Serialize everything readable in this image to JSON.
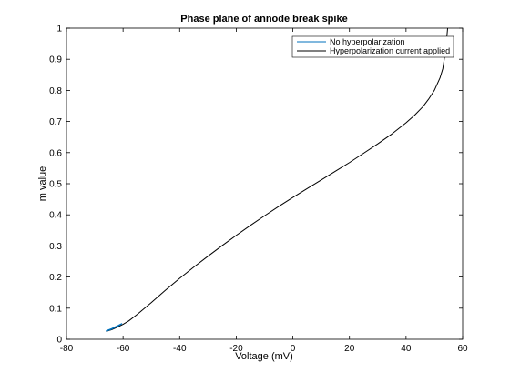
{
  "chart_data": {
    "type": "line",
    "title": "Phase plane of annode break spike",
    "xlabel": "Voltage (mV)",
    "ylabel": "m value",
    "xlim": [
      -80,
      60
    ],
    "ylim": [
      0,
      1
    ],
    "x_ticks": [
      -80,
      -60,
      -40,
      -20,
      0,
      20,
      40,
      60
    ],
    "y_ticks": [
      0,
      0.1,
      0.2,
      0.3,
      0.4,
      0.5,
      0.6,
      0.7,
      0.8,
      0.9,
      1
    ],
    "grid": false,
    "legend_position": "top-right",
    "series": [
      {
        "name": "No hyperpolarization",
        "color": "#0072bd",
        "x": [
          -66,
          -64,
          -62,
          -60.5,
          -62,
          -64,
          -66
        ],
        "y": [
          0.026,
          0.033,
          0.042,
          0.05,
          0.043,
          0.034,
          0.027
        ]
      },
      {
        "name": "Hyperpolarization current applied",
        "color": "#000000",
        "x": [
          -66,
          -64,
          -62,
          -60,
          -58,
          -55,
          -50,
          -45,
          -40,
          -35,
          -30,
          -25,
          -20,
          -15,
          -10,
          -5,
          0,
          5,
          10,
          15,
          20,
          25,
          30,
          35,
          40,
          43,
          46,
          48,
          50,
          52,
          53,
          53.5,
          54,
          54.3,
          54.5,
          54.6,
          54.7
        ],
        "y": [
          0.025,
          0.031,
          0.039,
          0.048,
          0.059,
          0.08,
          0.118,
          0.158,
          0.196,
          0.232,
          0.267,
          0.301,
          0.334,
          0.366,
          0.397,
          0.427,
          0.456,
          0.484,
          0.512,
          0.54,
          0.568,
          0.598,
          0.628,
          0.66,
          0.696,
          0.72,
          0.748,
          0.772,
          0.8,
          0.84,
          0.87,
          0.9,
          0.93,
          0.96,
          0.98,
          0.99,
          1.0
        ]
      }
    ]
  }
}
